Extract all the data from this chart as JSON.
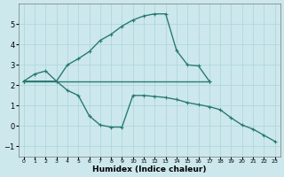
{
  "xlabel": "Humidex (Indice chaleur)",
  "background_color": "#cce8ec",
  "line_color": "#2a7a72",
  "grid_color": "#b0d8dc",
  "xlim": [
    -0.5,
    23.5
  ],
  "ylim": [
    -1.5,
    6.0
  ],
  "yticks": [
    -1,
    0,
    1,
    2,
    3,
    4,
    5
  ],
  "xticks": [
    0,
    1,
    2,
    3,
    4,
    5,
    6,
    7,
    8,
    9,
    10,
    11,
    12,
    13,
    14,
    15,
    16,
    17,
    18,
    19,
    20,
    21,
    22,
    23
  ],
  "series1_x": [
    0,
    1,
    2,
    3,
    4,
    5,
    6,
    7,
    8,
    9,
    10,
    11,
    12,
    13,
    14,
    15,
    16,
    17
  ],
  "series1_y": [
    2.2,
    2.55,
    2.7,
    2.2,
    3.0,
    3.3,
    3.65,
    4.2,
    4.5,
    4.9,
    5.2,
    5.4,
    5.5,
    5.5,
    3.7,
    3.0,
    2.95,
    2.2
  ],
  "series2_x": [
    0,
    3,
    4,
    5,
    6,
    7,
    8,
    9,
    10,
    11,
    12,
    13,
    14,
    15,
    16,
    17,
    18,
    19,
    20,
    21,
    22,
    23
  ],
  "series2_y": [
    2.2,
    2.2,
    1.75,
    1.5,
    0.5,
    0.05,
    -0.05,
    -0.05,
    1.5,
    1.5,
    1.45,
    1.4,
    1.3,
    1.15,
    1.05,
    0.95,
    0.8,
    0.4,
    0.05,
    -0.15,
    -0.45,
    -0.75
  ],
  "series3_x": [
    0,
    17
  ],
  "series3_y": [
    2.2,
    2.2
  ]
}
